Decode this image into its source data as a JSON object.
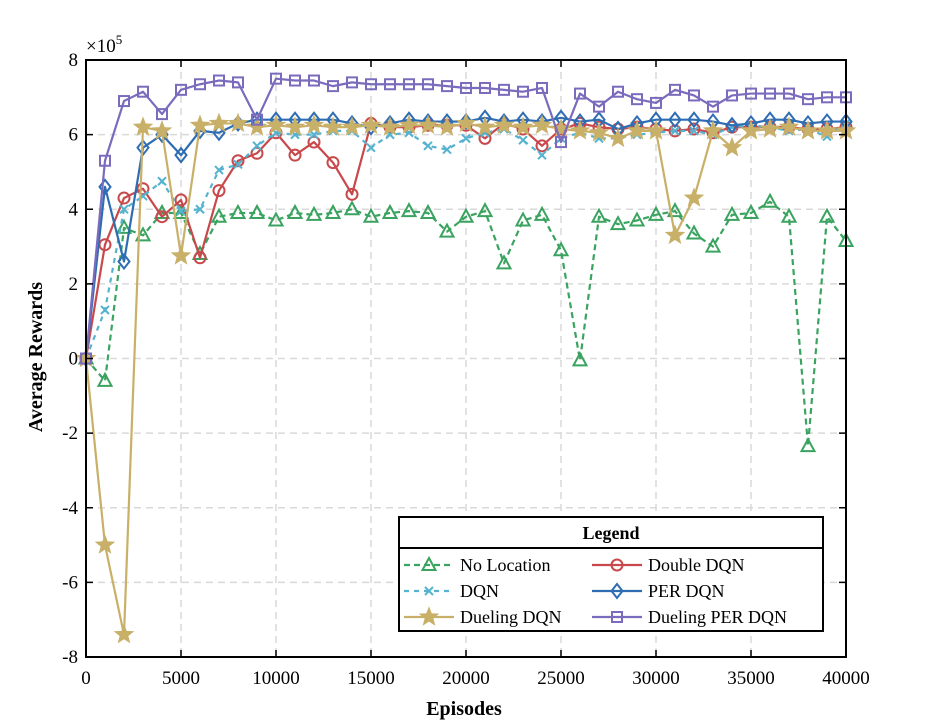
{
  "chart_data": {
    "type": "line",
    "title": "",
    "xlabel": "Episodes",
    "ylabel": "Average Rewards",
    "y_multiplier_label": "×10",
    "y_multiplier_exponent": "5",
    "xlim": [
      0,
      40000
    ],
    "ylim": [
      -8,
      8
    ],
    "x_ticks": [
      0,
      5000,
      10000,
      15000,
      20000,
      25000,
      30000,
      35000,
      40000
    ],
    "x_tick_labels": [
      "0",
      "5000",
      "10000",
      "15000",
      "20000",
      "25000",
      "30000",
      "35000",
      "40000"
    ],
    "y_ticks": [
      -8,
      -6,
      -4,
      -2,
      0,
      2,
      4,
      6,
      8
    ],
    "y_tick_labels": [
      "-8",
      "-6",
      "-4",
      "-2",
      "0",
      "2",
      "4",
      "6",
      "8"
    ],
    "grid": true,
    "legend": {
      "title": "Legend",
      "placement": "bottom-right"
    },
    "x": [
      0,
      1000,
      2000,
      3000,
      4000,
      5000,
      6000,
      7000,
      8000,
      9000,
      10000,
      11000,
      12000,
      13000,
      14000,
      15000,
      16000,
      17000,
      18000,
      19000,
      20000,
      21000,
      22000,
      23000,
      24000,
      25000,
      26000,
      27000,
      28000,
      29000,
      30000,
      31000,
      32000,
      33000,
      34000,
      35000,
      36000,
      37000,
      38000,
      39000,
      40000
    ],
    "series": [
      {
        "name": "No Location",
        "color": "#3aa35f",
        "dash": "6,4",
        "marker": "triangle",
        "values": [
          0,
          -0.6,
          3.5,
          3.3,
          3.9,
          3.9,
          2.8,
          3.8,
          3.9,
          3.9,
          3.7,
          3.9,
          3.85,
          3.9,
          4.0,
          3.8,
          3.9,
          3.95,
          3.9,
          3.4,
          3.8,
          3.95,
          2.55,
          3.7,
          3.85,
          2.9,
          -0.05,
          3.8,
          3.6,
          3.7,
          3.85,
          3.95,
          3.35,
          3.0,
          3.85,
          3.9,
          4.2,
          3.8,
          -2.35,
          3.8,
          3.15
        ]
      },
      {
        "name": "Double DQN",
        "color": "#c8484b",
        "dash": "",
        "marker": "circle",
        "values": [
          0,
          3.05,
          4.3,
          4.55,
          3.8,
          4.25,
          2.7,
          4.5,
          5.3,
          5.5,
          6.05,
          5.45,
          5.8,
          5.25,
          4.4,
          6.3,
          6.2,
          6.2,
          6.25,
          6.25,
          6.25,
          5.9,
          6.3,
          6.15,
          5.7,
          6.15,
          6.3,
          6.2,
          6.15,
          6.2,
          6.15,
          6.1,
          6.15,
          6.05,
          6.2,
          6.2,
          6.2,
          6.2,
          6.15,
          6.15,
          6.2
        ]
      },
      {
        "name": "DQN",
        "color": "#56b3cf",
        "dash": "5,5",
        "marker": "x",
        "values": [
          0,
          1.3,
          4.0,
          4.35,
          4.75,
          3.95,
          4.0,
          5.05,
          5.2,
          5.7,
          6.05,
          6.0,
          6.0,
          6.1,
          6.1,
          5.65,
          6.0,
          6.05,
          5.7,
          5.6,
          5.9,
          6.05,
          6.15,
          5.85,
          5.45,
          5.9,
          6.05,
          5.9,
          5.9,
          6.0,
          6.05,
          6.1,
          6.1,
          6.0,
          6.2,
          6.25,
          6.2,
          6.1,
          6.15,
          5.95,
          6.3
        ]
      },
      {
        "name": "PER DQN",
        "color": "#2f6db3",
        "dash": "",
        "marker": "diamond",
        "values": [
          0,
          4.6,
          2.6,
          5.65,
          6.0,
          5.45,
          6.1,
          6.05,
          6.3,
          6.4,
          6.4,
          6.4,
          6.4,
          6.4,
          6.3,
          6.2,
          6.3,
          6.4,
          6.35,
          6.35,
          6.35,
          6.45,
          6.35,
          6.4,
          6.35,
          6.45,
          6.35,
          6.4,
          6.15,
          6.3,
          6.4,
          6.4,
          6.4,
          6.35,
          6.25,
          6.3,
          6.4,
          6.4,
          6.3,
          6.35,
          6.35
        ]
      },
      {
        "name": "Dueling DQN",
        "color": "#c9b068",
        "dash": "",
        "marker": "star",
        "values": [
          0,
          -5.0,
          -7.4,
          6.2,
          6.1,
          2.75,
          6.25,
          6.3,
          6.3,
          6.2,
          6.25,
          6.2,
          6.25,
          6.2,
          6.2,
          6.25,
          6.2,
          6.25,
          6.25,
          6.2,
          6.3,
          6.2,
          6.25,
          6.2,
          6.25,
          6.15,
          6.1,
          6.05,
          5.9,
          6.1,
          6.1,
          3.3,
          4.3,
          6.1,
          5.65,
          6.1,
          6.15,
          6.2,
          6.1,
          6.1,
          6.1
        ]
      },
      {
        "name": "Dueling PER DQN",
        "color": "#7b6bbd",
        "dash": "",
        "marker": "square",
        "values": [
          0,
          5.3,
          6.9,
          7.15,
          6.55,
          7.2,
          7.35,
          7.45,
          7.4,
          6.4,
          7.5,
          7.45,
          7.45,
          7.3,
          7.4,
          7.35,
          7.35,
          7.35,
          7.35,
          7.3,
          7.25,
          7.25,
          7.2,
          7.15,
          7.25,
          5.8,
          7.1,
          6.75,
          7.15,
          6.95,
          6.85,
          7.2,
          7.05,
          6.75,
          7.05,
          7.1,
          7.1,
          7.1,
          6.95,
          7.0,
          7.0
        ]
      }
    ]
  }
}
